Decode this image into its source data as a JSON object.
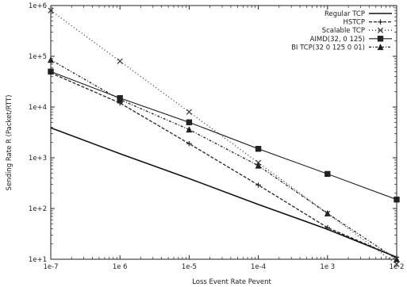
{
  "chart_data": {
    "type": "line",
    "xlabel": "Loss Event Rate Pevent",
    "ylabel": "Sending Rate R (Packet/RTT)",
    "x_scale": "log",
    "y_scale": "log",
    "xlim": [
      1e-07,
      0.01
    ],
    "ylim": [
      10,
      1000000
    ],
    "x_ticks": [
      {
        "value": 1e-07,
        "label": "1e-7"
      },
      {
        "value": 1e-06,
        "label": "1e 6"
      },
      {
        "value": 1e-05,
        "label": "1e-5"
      },
      {
        "value": 0.0001,
        "label": "1e-4"
      },
      {
        "value": 0.001,
        "label": "1e 3"
      },
      {
        "value": 0.01,
        "label": "1e 2"
      }
    ],
    "y_ticks": [
      {
        "value": 10,
        "label": "1e+1"
      },
      {
        "value": 100,
        "label": "1e+2"
      },
      {
        "value": 1000,
        "label": "1e+3"
      },
      {
        "value": 10000,
        "label": "1e+4"
      },
      {
        "value": 100000,
        "label": "1e+5"
      },
      {
        "value": 1000000,
        "label": "1e+6"
      }
    ],
    "grid": false,
    "legend_position": "top-right",
    "series": [
      {
        "name": "Regular TCP",
        "color": "#111111",
        "dash": "",
        "width": 1.6,
        "marker": "none",
        "x": [
          1e-07,
          1e-06,
          1e-05,
          0.0001,
          0.001,
          0.01
        ],
        "y": [
          3900,
          1200,
          390,
          120,
          39,
          11
        ]
      },
      {
        "name": "HSTCP",
        "color": "#222222",
        "dash": "4,2",
        "width": 1.3,
        "marker": "plus",
        "x": [
          1e-07,
          1e-06,
          1e-05,
          0.0001,
          0.001,
          0.01
        ],
        "y": [
          47000,
          12000,
          1900,
          290,
          42,
          11
        ]
      },
      {
        "name": "Scalable TCP",
        "color": "#333333",
        "dash": "1,3",
        "width": 1.3,
        "marker": "cross",
        "x": [
          1e-07,
          1e-06,
          1e-05,
          0.0001,
          0.001,
          0.01
        ],
        "y": [
          800000,
          80000,
          8000,
          800,
          80,
          8
        ]
      },
      {
        "name": "AIMD(32, 0 125)",
        "color": "#222222",
        "dash": "",
        "width": 1.1,
        "marker": "square",
        "x": [
          1e-07,
          1e-06,
          1e-05,
          0.0001,
          0.001,
          0.01
        ],
        "y": [
          50000,
          15000,
          5000,
          1500,
          480,
          150
        ]
      },
      {
        "name": "BI TCP(32 0 125 0 01)",
        "color": "#222222",
        "dash": "3,2,1,2",
        "width": 1.3,
        "marker": "triangle",
        "x": [
          1e-07,
          1e-06,
          1e-05,
          0.0001,
          0.001,
          0.01
        ],
        "y": [
          85000,
          14000,
          3600,
          700,
          80,
          10
        ]
      }
    ]
  }
}
